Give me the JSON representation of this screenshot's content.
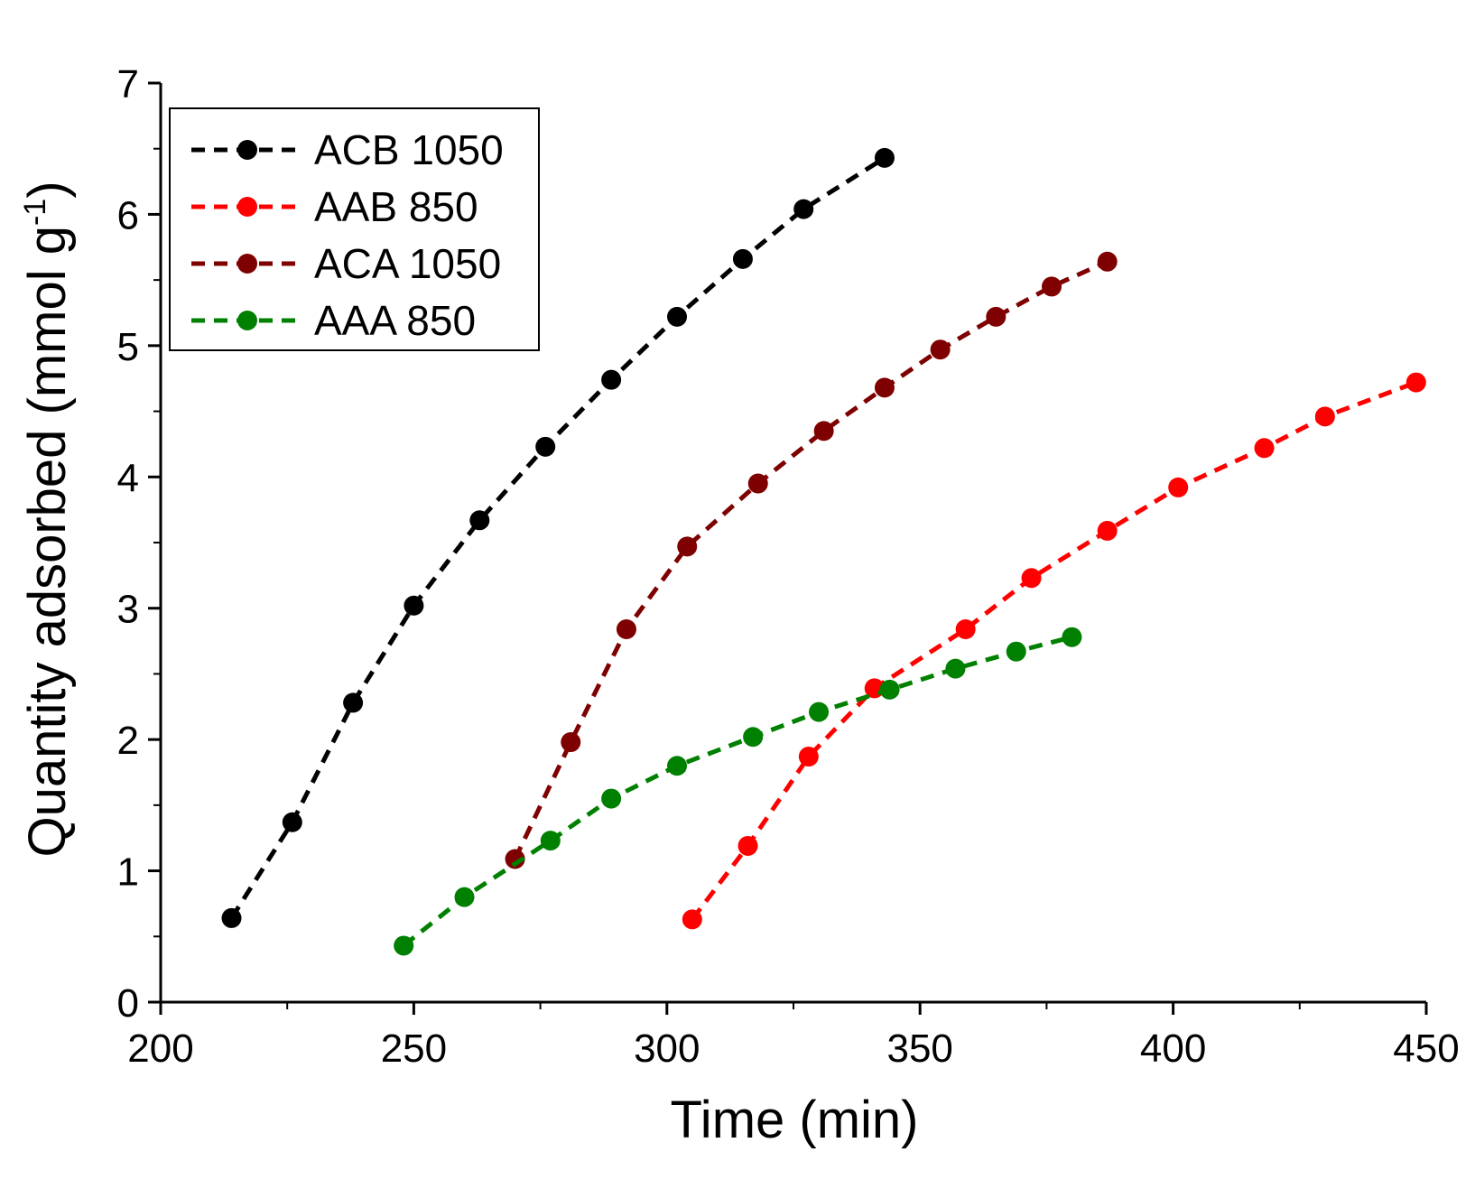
{
  "chart_data": {
    "type": "line",
    "xlabel": "Time (min)",
    "ylabel": {
      "main": "Quantity adsorbed (mmol g",
      "superscript": "-1",
      "close": ")"
    },
    "xlim": [
      200,
      450
    ],
    "ylim": [
      0,
      7
    ],
    "xticks": [
      200,
      250,
      300,
      350,
      400,
      450
    ],
    "yticks": [
      0,
      1,
      2,
      3,
      4,
      5,
      6,
      7
    ],
    "legend_position": "top-left",
    "series": [
      {
        "name": "ACB 1050",
        "color": "#000000",
        "x": [
          214,
          226,
          238,
          250,
          263,
          276,
          289,
          302,
          315,
          327,
          343
        ],
        "y": [
          0.64,
          1.37,
          2.28,
          3.02,
          3.67,
          4.23,
          4.74,
          5.22,
          5.66,
          6.04,
          6.43
        ]
      },
      {
        "name": "AAB 850",
        "color": "#ff0000",
        "x": [
          305,
          316,
          328,
          341,
          359,
          372,
          387,
          401,
          418,
          430,
          448
        ],
        "y": [
          0.63,
          1.19,
          1.87,
          2.39,
          2.84,
          3.23,
          3.59,
          3.92,
          4.22,
          4.46,
          4.72
        ]
      },
      {
        "name": "ACA 1050",
        "color": "#7f0000",
        "x": [
          270,
          281,
          292,
          304,
          318,
          331,
          343,
          354,
          365,
          376,
          387
        ],
        "y": [
          1.09,
          1.98,
          2.84,
          3.47,
          3.95,
          4.35,
          4.68,
          4.97,
          5.22,
          5.45,
          5.64
        ]
      },
      {
        "name": "AAA 850",
        "color": "#008000",
        "x": [
          248,
          260,
          277,
          289,
          302,
          317,
          330,
          344,
          357,
          369,
          380
        ],
        "y": [
          0.43,
          0.8,
          1.23,
          1.55,
          1.8,
          2.02,
          2.21,
          2.38,
          2.54,
          2.67,
          2.78
        ]
      }
    ]
  }
}
